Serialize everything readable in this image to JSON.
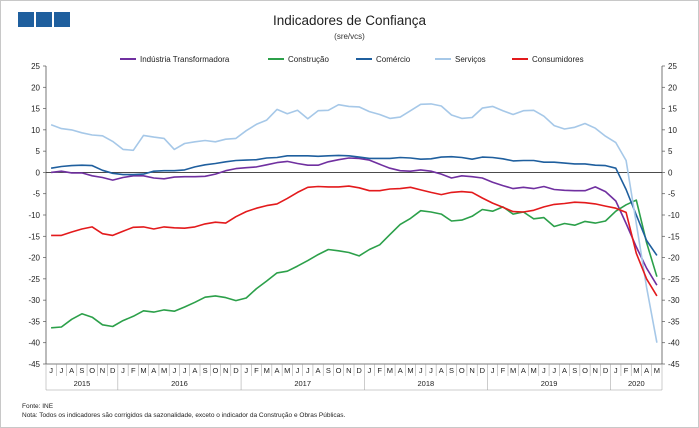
{
  "chart_data": {
    "type": "line",
    "title": "Indicadores de Confiança",
    "subtitle": "(sre/vcs)",
    "ylim": [
      -45,
      25
    ],
    "yticks": [
      25,
      20,
      15,
      10,
      5,
      0,
      -5,
      -10,
      -15,
      -20,
      -25,
      -30,
      -35,
      -40,
      -45
    ],
    "month_labels": [
      "J",
      "J",
      "A",
      "S",
      "O",
      "N",
      "D",
      "J",
      "F",
      "M",
      "A",
      "M",
      "J",
      "J",
      "A",
      "S",
      "O",
      "N",
      "D",
      "J",
      "F",
      "M",
      "A",
      "M",
      "J",
      "J",
      "A",
      "S",
      "O",
      "N",
      "D",
      "J",
      "F",
      "M",
      "A",
      "M",
      "J",
      "J",
      "A",
      "S",
      "O",
      "N",
      "D",
      "J",
      "F",
      "M",
      "A",
      "M",
      "J",
      "J",
      "A",
      "S",
      "O",
      "N",
      "D",
      "J",
      "F",
      "M",
      "A",
      "M"
    ],
    "years": [
      {
        "label": "2015",
        "start": 0,
        "count": 7
      },
      {
        "label": "2016",
        "start": 7,
        "count": 12
      },
      {
        "label": "2017",
        "start": 19,
        "count": 12
      },
      {
        "label": "2018",
        "start": 31,
        "count": 12
      },
      {
        "label": "2019",
        "start": 43,
        "count": 12
      },
      {
        "label": "2020",
        "start": 55,
        "count": 5
      }
    ],
    "series": [
      {
        "name": "Indústria Transformadora",
        "color": "#7030a0",
        "values": [
          0.0,
          0.3,
          -0.1,
          -0.1,
          -0.8,
          -1.2,
          -1.8,
          -1.2,
          -0.8,
          -0.8,
          -1.3,
          -1.5,
          -1.1,
          -1.0,
          -1.0,
          -0.9,
          -0.4,
          0.4,
          0.9,
          1.1,
          1.3,
          1.8,
          2.3,
          2.6,
          2.1,
          1.7,
          1.7,
          2.5,
          3.0,
          3.4,
          3.3,
          2.9,
          1.9,
          1.0,
          0.4,
          0.3,
          0.6,
          0.3,
          -0.4,
          -1.3,
          -0.8,
          -1.0,
          -1.3,
          -2.3,
          -3.1,
          -3.8,
          -3.5,
          -3.8,
          -3.3,
          -4.0,
          -4.2,
          -4.3,
          -4.3,
          -3.4,
          -4.5,
          -6.7,
          -12.0,
          -17.5,
          -22.5,
          -26.5
        ]
      },
      {
        "name": "Construção",
        "color": "#2ca04a",
        "values": [
          -36.5,
          -36.3,
          -34.5,
          -33.2,
          -34.0,
          -35.8,
          -36.2,
          -34.8,
          -33.8,
          -32.5,
          -32.8,
          -32.3,
          -32.6,
          -31.6,
          -30.5,
          -29.3,
          -29.0,
          -29.4,
          -30.1,
          -29.5,
          -27.3,
          -25.5,
          -23.6,
          -23.2,
          -22.0,
          -20.7,
          -19.3,
          -18.1,
          -18.4,
          -18.8,
          -19.6,
          -18.1,
          -17.0,
          -14.6,
          -12.2,
          -10.8,
          -9.0,
          -9.3,
          -9.8,
          -11.4,
          -11.2,
          -10.3,
          -8.7,
          -9.1,
          -8.1,
          -9.8,
          -9.3,
          -10.9,
          -10.6,
          -12.7,
          -12.0,
          -12.4,
          -11.5,
          -11.9,
          -11.4,
          -9.1,
          -7.6,
          -6.5,
          -16.5,
          -24.5
        ]
      },
      {
        "name": "Comércio",
        "color": "#1f5f9e",
        "values": [
          1.0,
          1.4,
          1.6,
          1.7,
          1.6,
          0.5,
          -0.2,
          -0.5,
          -0.5,
          -0.4,
          0.3,
          0.4,
          0.4,
          0.6,
          1.3,
          1.8,
          2.1,
          2.5,
          2.8,
          2.9,
          3.0,
          3.4,
          3.5,
          3.9,
          3.9,
          3.9,
          3.8,
          3.9,
          4.0,
          3.9,
          3.6,
          3.3,
          3.3,
          3.3,
          3.5,
          3.4,
          3.1,
          3.2,
          3.6,
          3.7,
          3.5,
          3.1,
          3.6,
          3.5,
          3.2,
          2.7,
          2.8,
          2.8,
          2.4,
          2.4,
          2.2,
          2.0,
          2.0,
          1.7,
          1.6,
          1.0,
          -4.0,
          -10.0,
          -16.0,
          -19.5
        ]
      },
      {
        "name": "Serviços",
        "color": "#a6c8e8",
        "values": [
          11.2,
          10.3,
          10.0,
          9.3,
          8.8,
          8.6,
          7.3,
          5.4,
          5.2,
          8.7,
          8.3,
          8.0,
          5.4,
          6.8,
          7.2,
          7.5,
          7.2,
          7.8,
          8.0,
          9.8,
          11.3,
          12.3,
          14.8,
          13.8,
          14.6,
          12.6,
          14.5,
          14.6,
          15.9,
          15.5,
          15.4,
          14.3,
          13.6,
          12.7,
          13.0,
          14.5,
          16.0,
          16.1,
          15.6,
          13.5,
          12.7,
          12.9,
          15.1,
          15.5,
          14.5,
          13.6,
          14.5,
          14.6,
          13.2,
          11.0,
          10.2,
          10.6,
          11.5,
          10.4,
          8.5,
          7.0,
          2.8,
          -12.0,
          -27.0,
          -40.0
        ]
      },
      {
        "name": "Consumidores",
        "color": "#e31a1c",
        "values": [
          -14.8,
          -14.8,
          -14.0,
          -13.3,
          -12.8,
          -14.4,
          -14.8,
          -13.8,
          -12.9,
          -12.8,
          -13.3,
          -12.8,
          -13.0,
          -13.1,
          -12.8,
          -12.1,
          -11.7,
          -11.9,
          -10.4,
          -9.2,
          -8.4,
          -7.8,
          -7.4,
          -6.1,
          -4.7,
          -3.5,
          -3.3,
          -3.4,
          -3.4,
          -3.2,
          -3.6,
          -4.3,
          -4.3,
          -3.9,
          -3.8,
          -3.5,
          -4.1,
          -4.7,
          -5.2,
          -4.7,
          -4.5,
          -4.7,
          -6.0,
          -7.2,
          -8.2,
          -9.2,
          -9.3,
          -8.9,
          -8.1,
          -7.5,
          -7.3,
          -7.0,
          -7.1,
          -7.4,
          -7.9,
          -8.4,
          -9.4,
          -19.0,
          -25.0,
          -29.0
        ]
      }
    ]
  },
  "notes": {
    "source": "Fonte: INE",
    "note": "Nota: Todos os indicadores são corrigidos da sazonalidade, exceto o indicador da Construção e Obras Públicas."
  }
}
